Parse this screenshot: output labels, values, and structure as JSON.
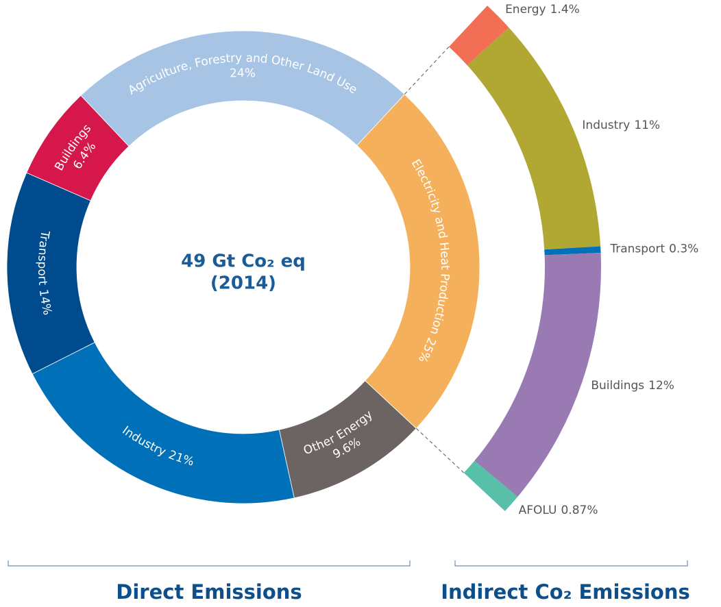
{
  "chart_data": [
    {
      "type": "donut",
      "title": "Direct Emissions",
      "center_text": [
        "49 Gt Co₂ eq",
        "(2014)"
      ],
      "categories": [
        "Electricity and Heat Production",
        "Other Energy",
        "Industry",
        "Transport",
        "Buildings",
        "Agriculture, Forestry and Other Land Use"
      ],
      "values": [
        25,
        9.6,
        21,
        14,
        6.4,
        24
      ],
      "value_labels": [
        "25%",
        "9.6%",
        "21%",
        "14%",
        "6.4%",
        "24%"
      ],
      "colors": [
        "#f5b05c",
        "#6b6462",
        "#0070b8",
        "#004b8d",
        "#d6174b",
        "#a7c4e5"
      ]
    },
    {
      "type": "arc",
      "title": "Indirect Co₂ Emissions",
      "categories": [
        "Energy",
        "Industry",
        "Transport",
        "Buildings",
        "AFOLU"
      ],
      "values": [
        1.4,
        11,
        0.3,
        12,
        0.87
      ],
      "value_labels": [
        "1.4%",
        "11%",
        "0.3%",
        "12%",
        "0.87%"
      ],
      "colors": [
        "#f26f55",
        "#b0a833",
        "#0070b8",
        "#9a7ab3",
        "#58bfa8"
      ]
    }
  ]
}
